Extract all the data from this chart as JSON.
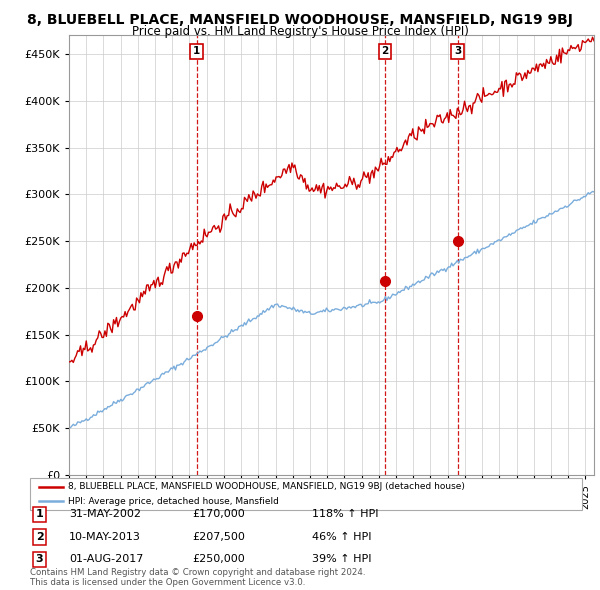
{
  "title": "8, BLUEBELL PLACE, MANSFIELD WOODHOUSE, MANSFIELD, NG19 9BJ",
  "subtitle": "Price paid vs. HM Land Registry's House Price Index (HPI)",
  "title_fontsize": 10,
  "subtitle_fontsize": 8.5,
  "ylim": [
    0,
    470000
  ],
  "yticks": [
    0,
    50000,
    100000,
    150000,
    200000,
    250000,
    300000,
    350000,
    400000,
    450000
  ],
  "ytick_labels": [
    "£0",
    "£50K",
    "£100K",
    "£150K",
    "£200K",
    "£250K",
    "£300K",
    "£350K",
    "£400K",
    "£450K"
  ],
  "hpi_color": "#7aaddc",
  "price_color": "#cc0000",
  "dashed_color": "#cc0000",
  "legend_label_price": "8, BLUEBELL PLACE, MANSFIELD WOODHOUSE, MANSFIELD, NG19 9BJ (detached house)",
  "legend_label_hpi": "HPI: Average price, detached house, Mansfield",
  "transactions": [
    {
      "date_num": 2002.42,
      "price": 170000,
      "label": "1"
    },
    {
      "date_num": 2013.36,
      "price": 207500,
      "label": "2"
    },
    {
      "date_num": 2017.58,
      "price": 250000,
      "label": "3"
    }
  ],
  "table_rows": [
    {
      "label": "1",
      "date": "31-MAY-2002",
      "price": "£170,000",
      "change": "118% ↑ HPI"
    },
    {
      "label": "2",
      "date": "10-MAY-2013",
      "price": "£207,500",
      "change": "46% ↑ HPI"
    },
    {
      "label": "3",
      "date": "01-AUG-2017",
      "price": "£250,000",
      "change": "39% ↑ HPI"
    }
  ],
  "footnote": "Contains HM Land Registry data © Crown copyright and database right 2024.\nThis data is licensed under the Open Government Licence v3.0.",
  "background_color": "#ffffff",
  "grid_color": "#cccccc",
  "xlim_start": 1995.0,
  "xlim_end": 2025.5
}
